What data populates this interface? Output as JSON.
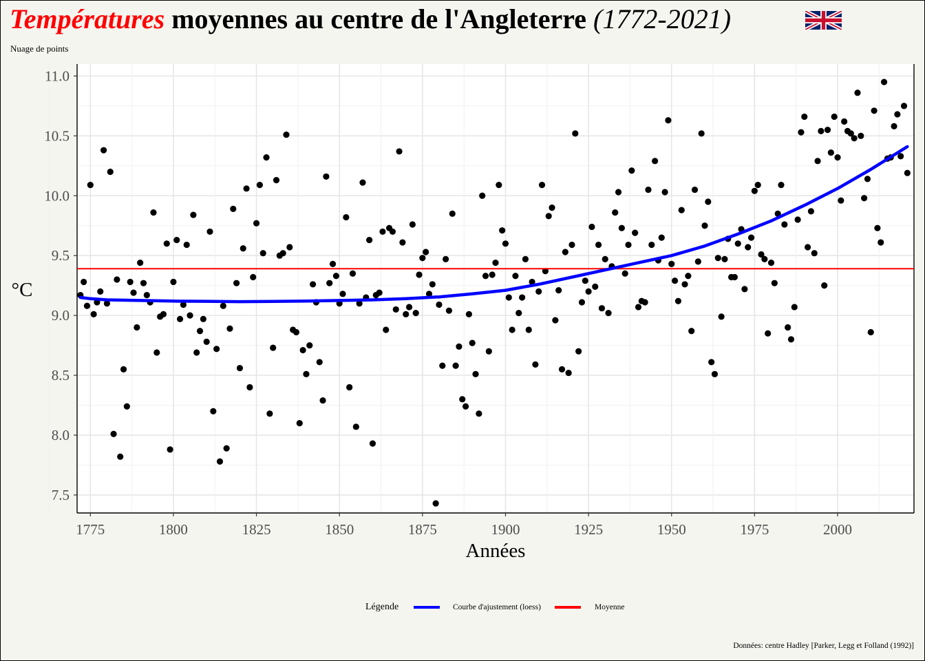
{
  "title": {
    "part1": "Températures",
    "part2": " moyennes au centre de l'Angleterre",
    "years": "(1772-2021)"
  },
  "subtitle": "Nuage de points",
  "legend": {
    "title": "Légende",
    "loess_label": "Courbe d'ajustement (loess)",
    "mean_label": "Moyenne"
  },
  "source": "Données: centre Hadley [Parker, Legg et Folland (1992)]",
  "colors": {
    "points": "#000000",
    "loess": "#0000ff",
    "mean": "#ff0000",
    "title_accent": "#ff0000",
    "background": "#f5f5f0",
    "panel": "#ffffff",
    "grid": "#e6e6e6"
  },
  "flag_icon": "union-jack-icon",
  "chart_data": {
    "type": "scatter",
    "xlabel": "Années",
    "ylabel": "°C",
    "xlim": [
      1771,
      2023
    ],
    "ylim": [
      7.35,
      11.1
    ],
    "xticks": [
      1775,
      1800,
      1825,
      1850,
      1875,
      1900,
      1925,
      1950,
      1975,
      2000
    ],
    "yticks": [
      7.5,
      8.0,
      8.5,
      9.0,
      9.5,
      10.0,
      10.5,
      11.0
    ],
    "ytick_labels": [
      "7.5",
      "8.0",
      "8.5",
      "9.0",
      "9.5",
      "10.0",
      "10.5",
      "11.0"
    ],
    "grid": true,
    "legend_position": "bottom",
    "mean": 9.39,
    "series": [
      {
        "name": "Nuage de points",
        "values": [
          9.17,
          9.28,
          9.08,
          10.09,
          9.01,
          9.11,
          9.2,
          10.38,
          9.1,
          10.2,
          8.01,
          9.3,
          7.82,
          8.55,
          8.24,
          9.28,
          9.19,
          8.9,
          9.44,
          9.27,
          9.17,
          9.11,
          9.86,
          8.69,
          8.99,
          9.01,
          9.6,
          7.88,
          9.28,
          9.63,
          8.97,
          9.09,
          9.59,
          9.0,
          9.84,
          8.69,
          8.87,
          8.97,
          8.78,
          9.7,
          8.2,
          8.72,
          7.78,
          9.08,
          7.89,
          8.89,
          9.89,
          9.27,
          8.56,
          9.56,
          10.06,
          8.4,
          9.32,
          9.77,
          10.09,
          9.52,
          10.32,
          8.18,
          8.73,
          10.13,
          9.5,
          9.52,
          10.51,
          9.57,
          8.88,
          8.86,
          8.1,
          8.71,
          8.51,
          8.75,
          9.26,
          9.11,
          8.61,
          8.29,
          10.16,
          9.27,
          9.43,
          9.33,
          9.1,
          9.18,
          9.82,
          8.4,
          9.35,
          8.07,
          9.1,
          10.11,
          9.15,
          9.63,
          7.93,
          9.17,
          9.19,
          9.7,
          8.88,
          9.73,
          9.7,
          9.05,
          10.37,
          9.61,
          9.01,
          9.07,
          9.76,
          9.02,
          9.34,
          9.48,
          9.53,
          9.18,
          9.26,
          7.43,
          9.09,
          8.58,
          9.47,
          9.04,
          9.85,
          8.58,
          8.74,
          8.3,
          8.24,
          9.01,
          8.77,
          8.51,
          8.18,
          10.0,
          9.33,
          8.7,
          9.34,
          9.44,
          10.09,
          9.71,
          9.6,
          9.15,
          8.88,
          9.33,
          9.02,
          9.15,
          9.47,
          8.88,
          9.28,
          8.59,
          9.2,
          10.09,
          9.37,
          9.83,
          9.9,
          8.96,
          9.21,
          8.55,
          9.53,
          8.52,
          9.59,
          10.52,
          8.7,
          9.11,
          9.29,
          9.2,
          9.74,
          9.24,
          9.59,
          9.06,
          9.47,
          9.02,
          9.41,
          9.86,
          10.03,
          9.73,
          9.35,
          9.59,
          10.21,
          9.69,
          9.07,
          9.12,
          9.11,
          10.05,
          9.59,
          10.29,
          9.46,
          9.65,
          10.03,
          10.63,
          9.43,
          9.29,
          9.12,
          9.88,
          9.26,
          9.33,
          8.87,
          10.05,
          9.45,
          10.52,
          9.75,
          9.95,
          8.61,
          8.51,
          9.48,
          8.99,
          9.47,
          9.64,
          9.32,
          9.32,
          9.6,
          9.72,
          9.22,
          9.57,
          9.65,
          10.04,
          10.09,
          9.51,
          9.47,
          8.85,
          9.44,
          9.27,
          9.85,
          10.09,
          9.76,
          8.9,
          8.8,
          9.07,
          9.8,
          10.53,
          10.66,
          9.57,
          9.87,
          9.52,
          10.29,
          10.54,
          9.25,
          10.55,
          10.36,
          10.66,
          10.32,
          9.96,
          10.62,
          10.54,
          10.52,
          10.48,
          10.86,
          10.5,
          9.98,
          10.14,
          8.86,
          10.71,
          9.73,
          9.61,
          10.95,
          10.31,
          10.32,
          10.58,
          10.68,
          10.33,
          10.75,
          10.19
        ],
        "x_start": 1772,
        "x_end": 2021
      },
      {
        "name": "Courbe d'ajustement (loess)",
        "x": [
          1772,
          1775,
          1780,
          1790,
          1800,
          1810,
          1820,
          1830,
          1840,
          1850,
          1860,
          1870,
          1880,
          1890,
          1900,
          1910,
          1920,
          1930,
          1940,
          1950,
          1960,
          1970,
          1980,
          1990,
          2000,
          2010,
          2021
        ],
        "y": [
          9.15,
          9.14,
          9.13,
          9.125,
          9.12,
          9.118,
          9.115,
          9.117,
          9.12,
          9.125,
          9.13,
          9.14,
          9.155,
          9.18,
          9.21,
          9.26,
          9.32,
          9.38,
          9.44,
          9.5,
          9.58,
          9.68,
          9.79,
          9.92,
          10.06,
          10.22,
          10.41
        ]
      }
    ]
  }
}
